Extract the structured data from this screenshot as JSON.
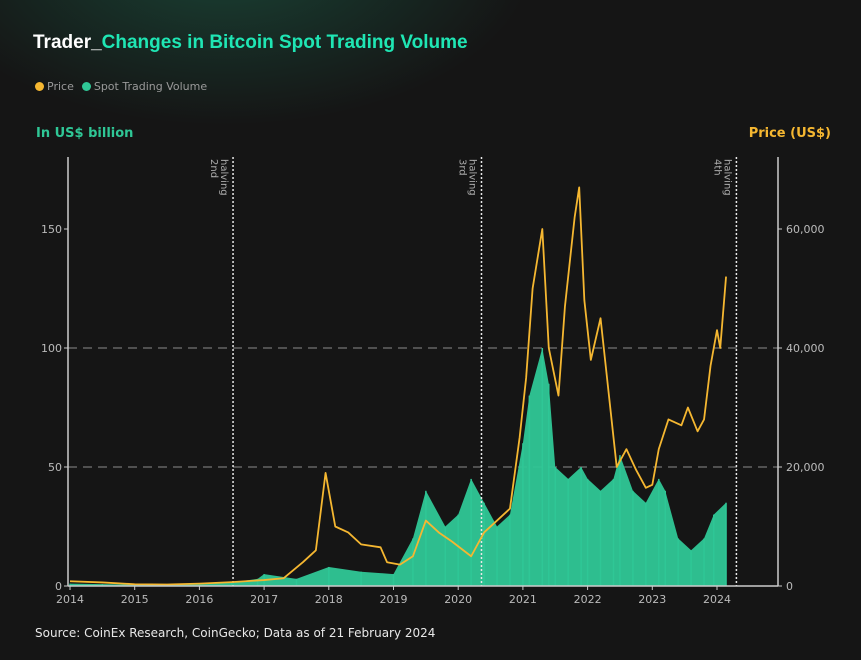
{
  "title_prefix": "Trader_",
  "title_main": "Changes in Bitcoin Spot Trading Volume",
  "legend": [
    {
      "label": "Price",
      "color": "#f5b731"
    },
    {
      "label": "Spot Trading Volume",
      "color": "#2fc796"
    }
  ],
  "left_axis_label": "In US$ billion",
  "right_axis_label": "Price (US$)",
  "source": "Source: CoinEx Research, CoinGecko; Data as of 21 February 2024",
  "chart_data": {
    "type": "line+area",
    "title": "Changes in Bitcoin Spot Trading Volume",
    "xlim": [
      2014,
      2025
    ],
    "x_ticks": [
      "2014",
      "2015",
      "2016",
      "2017",
      "2018",
      "2019",
      "2020",
      "2021",
      "2022",
      "2023",
      "2024"
    ],
    "y_left": {
      "label": "In US$ billion",
      "ylim": [
        0,
        180
      ],
      "ticks": [
        "0",
        "50",
        "100",
        "150"
      ]
    },
    "y_right": {
      "label": "Price (US$)",
      "ylim": [
        0,
        72000
      ],
      "ticks": [
        "0",
        "20,000",
        "40,000",
        "60,000"
      ]
    },
    "halvings": [
      {
        "x": 2016.52,
        "label1": "2nd",
        "label2": "halving"
      },
      {
        "x": 2020.36,
        "label1": "3rd",
        "label2": "halving"
      },
      {
        "x": 2024.3,
        "label1": "4th",
        "label2": "halving"
      }
    ],
    "series": [
      {
        "name": "Spot Trading Volume",
        "axis": "left",
        "color": "#2fc796",
        "x": [
          2014,
          2014.5,
          2015,
          2015.5,
          2016,
          2016.5,
          2016.9,
          2017,
          2017.5,
          2018,
          2018.5,
          2019,
          2019.3,
          2019.5,
          2019.8,
          2020,
          2020.2,
          2020.4,
          2020.6,
          2020.8,
          2021,
          2021.1,
          2021.3,
          2021.4,
          2021.5,
          2021.7,
          2021.9,
          2022,
          2022.2,
          2022.4,
          2022.5,
          2022.7,
          2022.9,
          2023.1,
          2023.2,
          2023.4,
          2023.6,
          2023.8,
          2023.95,
          2024.14
        ],
        "y": [
          1,
          0.8,
          0.6,
          0.5,
          0.8,
          1.5,
          3,
          5,
          3,
          8,
          6,
          5,
          20,
          40,
          25,
          30,
          45,
          35,
          25,
          30,
          60,
          80,
          100,
          85,
          50,
          45,
          50,
          45,
          40,
          45,
          55,
          40,
          35,
          45,
          40,
          20,
          15,
          20,
          30,
          35
        ]
      },
      {
        "name": "Price",
        "axis": "right",
        "color": "#f5b731",
        "x": [
          2014,
          2014.5,
          2015,
          2015.5,
          2016,
          2016.5,
          2017,
          2017.3,
          2017.6,
          2017.8,
          2017.95,
          2018.1,
          2018.3,
          2018.5,
          2018.8,
          2018.9,
          2019.1,
          2019.3,
          2019.5,
          2019.7,
          2019.9,
          2020.2,
          2020.4,
          2020.6,
          2020.8,
          2020.95,
          2021.05,
          2021.15,
          2021.3,
          2021.4,
          2021.55,
          2021.65,
          2021.8,
          2021.87,
          2021.95,
          2022.05,
          2022.2,
          2022.35,
          2022.45,
          2022.6,
          2022.75,
          2022.9,
          2023.0,
          2023.1,
          2023.25,
          2023.45,
          2023.55,
          2023.7,
          2023.8,
          2023.9,
          2024.0,
          2024.05,
          2024.14
        ],
        "y": [
          800,
          600,
          300,
          250,
          400,
          650,
          1000,
          1300,
          4000,
          6000,
          19000,
          10000,
          9000,
          7000,
          6500,
          4000,
          3600,
          5000,
          11000,
          9000,
          7500,
          5000,
          9000,
          11000,
          13000,
          25000,
          35000,
          50000,
          60000,
          40000,
          32000,
          47000,
          62000,
          67000,
          48000,
          38000,
          45000,
          30000,
          20000,
          23000,
          19500,
          16500,
          17000,
          23000,
          28000,
          27000,
          30000,
          26000,
          28000,
          37000,
          43000,
          40000,
          52000
        ]
      }
    ],
    "grid": "dashed horizontal at 50 and 100",
    "legend_position": "top-left"
  }
}
